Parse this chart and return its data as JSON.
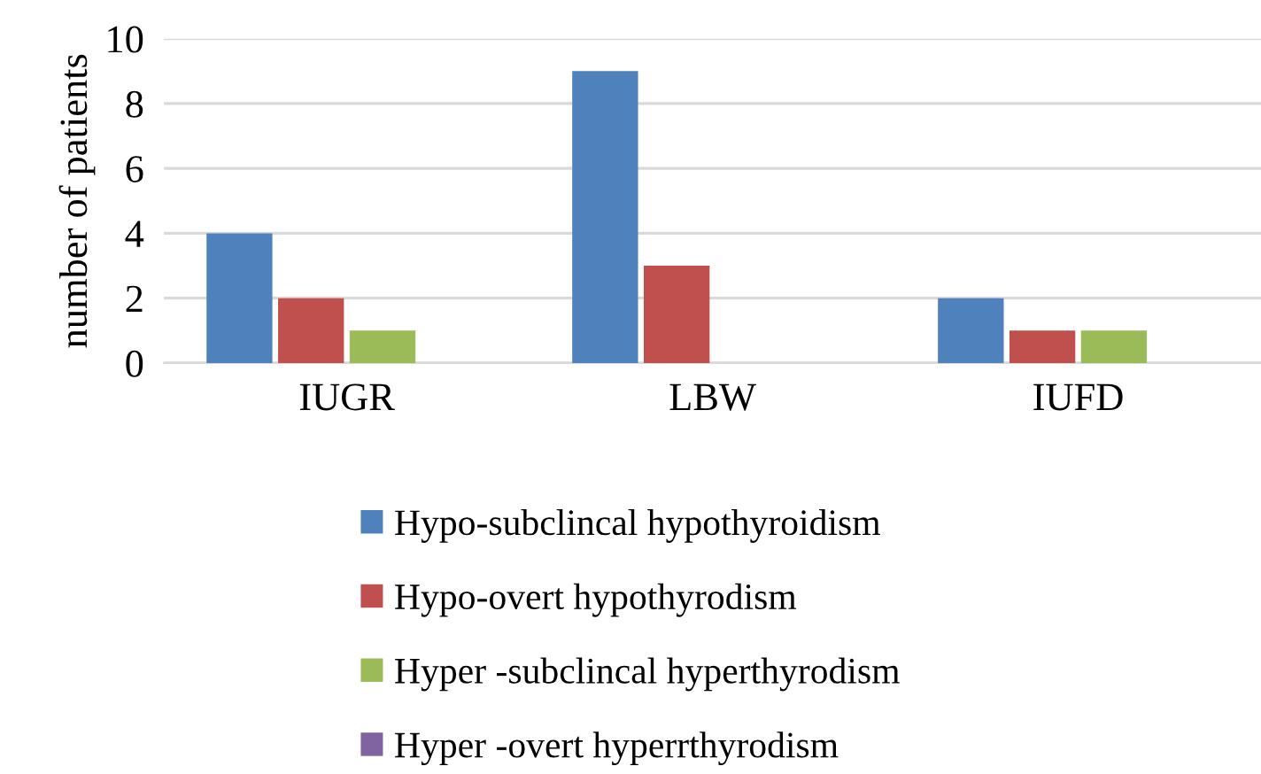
{
  "chart_data": {
    "type": "bar",
    "ylabel": "number of patients",
    "categories": [
      "IUGR",
      "LBW",
      "IUFD"
    ],
    "series": [
      {
        "name": "Hypo-subclincal hypothyroidism",
        "color": "#4f81bd",
        "values": [
          4,
          9,
          2
        ]
      },
      {
        "name": "Hypo-overt hypothyrodism",
        "color": "#c0504d",
        "values": [
          2,
          3,
          1
        ]
      },
      {
        "name": "Hyper -subclincal hyperthyrodism",
        "color": "#9bbb59",
        "values": [
          1,
          0,
          1
        ]
      },
      {
        "name": "Hyper -overt hyperrthyrodism",
        "color": "#8064a2",
        "values": [
          0,
          0,
          0
        ]
      }
    ],
    "ylim": [
      0,
      10
    ],
    "yticks": [
      0,
      2,
      4,
      6,
      8,
      10
    ],
    "grid": "y",
    "legend": "bottom"
  }
}
